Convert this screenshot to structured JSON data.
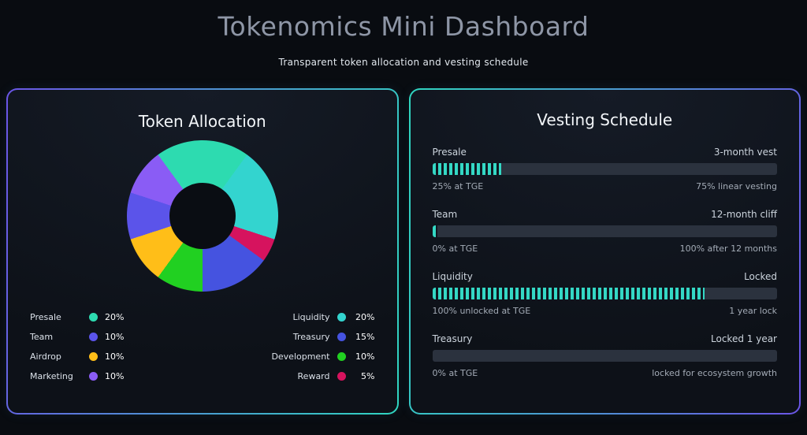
{
  "page": {
    "title": "Tokenomics Mini Dashboard",
    "subtitle": "Transparent token allocation and vesting schedule"
  },
  "allocation": {
    "title": "Token Allocation",
    "legend_left": [
      {
        "label": "Presale",
        "value": "20%",
        "color": "#2ddbb0"
      },
      {
        "label": "Team",
        "value": "10%",
        "color": "#5b54ea"
      },
      {
        "label": "Airdrop",
        "value": "10%",
        "color": "#ffbe18"
      },
      {
        "label": "Marketing",
        "value": "10%",
        "color": "#8a5cf5"
      }
    ],
    "legend_right": [
      {
        "label": "Liquidity",
        "value": "20%",
        "color": "#33d4cf"
      },
      {
        "label": "Treasury",
        "value": "15%",
        "color": "#4553e0"
      },
      {
        "label": "Development",
        "value": "10%",
        "color": "#21d021"
      },
      {
        "label": "Reward",
        "value": "5%",
        "color": "#d6135e"
      }
    ]
  },
  "vesting": {
    "title": "Vesting Schedule",
    "rows": [
      {
        "label": "Presale",
        "status": "3-month vest",
        "fill": 20,
        "sub_left": "25% at TGE",
        "sub_right": "75% linear vesting"
      },
      {
        "label": "Team",
        "status": "12-month cliff",
        "fill": 1.5,
        "sub_left": "0% at TGE",
        "sub_right": "100% after 12 months"
      },
      {
        "label": "Liquidity",
        "status": "Locked",
        "fill": 79,
        "sub_left": "100% unlocked at TGE",
        "sub_right": "1 year lock"
      },
      {
        "label": "Treasury",
        "status": "Locked 1 year",
        "fill": 0,
        "sub_left": "0% at TGE",
        "sub_right": "locked for ecosystem growth"
      }
    ]
  },
  "chart_data": [
    {
      "type": "pie",
      "title": "Token Allocation",
      "labels": [
        "Presale",
        "Liquidity",
        "Reward",
        "Treasury",
        "Development",
        "Airdrop",
        "Team",
        "Marketing"
      ],
      "values": [
        20,
        20,
        5,
        15,
        10,
        10,
        10,
        10
      ],
      "colors": [
        "#2ddbb0",
        "#33d4cf",
        "#d6135e",
        "#4553e0",
        "#21d021",
        "#ffbe18",
        "#5b54ea",
        "#8a5cf5"
      ],
      "start_angle_deg": -36,
      "donut": true,
      "legend_position": "bottom-two-columns"
    },
    {
      "type": "bar",
      "title": "Vesting Schedule",
      "categories": [
        "Presale",
        "Team",
        "Liquidity",
        "Treasury"
      ],
      "values": [
        20,
        1.5,
        79,
        0
      ],
      "xlim": [
        0,
        100
      ],
      "annotations": [
        "3-month vest | 25% at TGE | 75% linear vesting",
        "12-month cliff | 0% at TGE | 100% after 12 months",
        "Locked | 100% unlocked at TGE | 1 year lock",
        "Locked 1 year | 0% at TGE | locked for ecosystem growth"
      ]
    }
  ]
}
